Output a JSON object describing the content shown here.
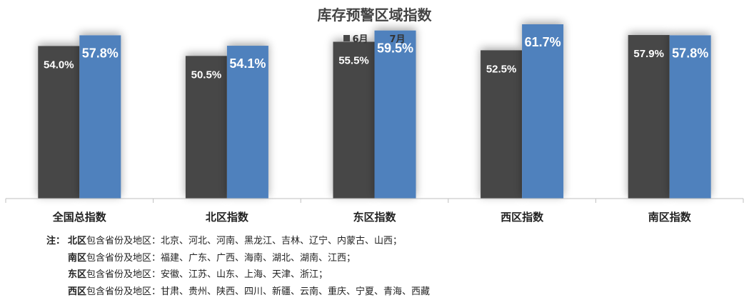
{
  "chart_data": {
    "type": "bar",
    "title": "库存预警区域指数",
    "categories": [
      "全国总指数",
      "北区指数",
      "东区指数",
      "西区指数",
      "南区指数"
    ],
    "series": [
      {
        "name": "6月",
        "color": "#474747",
        "values": [
          54.0,
          50.5,
          55.5,
          52.5,
          57.9
        ]
      },
      {
        "name": "7月",
        "color": "#4F81BD",
        "values": [
          57.8,
          54.1,
          59.5,
          61.7,
          57.8
        ]
      }
    ],
    "value_format": "%",
    "ylim": [
      0,
      66
    ],
    "legend_position": "top-center",
    "grid": false
  },
  "notes": {
    "prefix": "注：",
    "lines": [
      {
        "region": "北区",
        "desc": "包含省份及地区：北京、河北、河南、黑龙江、吉林、辽宁、内蒙古、山西；"
      },
      {
        "region": "南区",
        "desc": "包含省份及地区：福建、广东、广西、海南、湖北、湖南、江西；"
      },
      {
        "region": "东区",
        "desc": "包含省份及地区：安徽、江苏、山东、上海、天津、浙江；"
      },
      {
        "region": "西区",
        "desc": "包含省份及地区：甘肃、贵州、陕西、四川、新疆、云南、重庆、宁夏、青海、西藏"
      }
    ]
  }
}
